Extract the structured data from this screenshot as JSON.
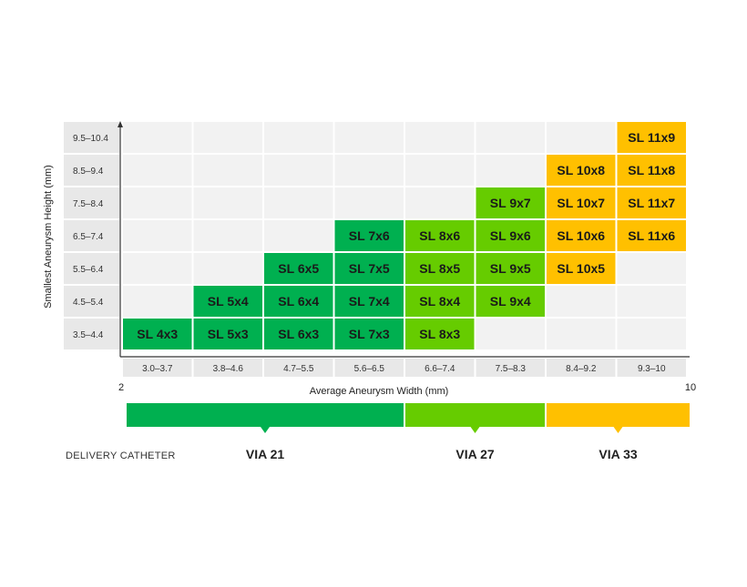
{
  "chart_data": {
    "type": "table",
    "ylabel": "Smallest Aneurysm Height (mm)",
    "xlabel": "Average Aneurysm Width (mm)",
    "x_min_label": "2",
    "x_max_label": "10",
    "x_categories": [
      "3.0–3.7",
      "3.8–4.6",
      "4.7–5.5",
      "5.6–6.5",
      "6.6–7.4",
      "7.5–8.3",
      "8.4–9.2",
      "9.3–10"
    ],
    "y_categories": [
      "9.5–10.4",
      "8.5–9.4",
      "7.5–8.4",
      "6.5–7.4",
      "5.5–6.4",
      "4.5–5.4",
      "3.5–4.4"
    ],
    "colors": {
      "via21": "#00b050",
      "via27": "#66cc00",
      "via33": "#ffc000",
      "empty": "#f2f2f2",
      "label_bg": "#e8e8e8"
    },
    "cells": [
      {
        "label": "SL 4x3",
        "col": 0,
        "row": 6,
        "catheter": "via21"
      },
      {
        "label": "SL 5x4",
        "col": 1,
        "row": 5,
        "catheter": "via21"
      },
      {
        "label": "SL 5x3",
        "col": 1,
        "row": 6,
        "catheter": "via21"
      },
      {
        "label": "SL 6x5",
        "col": 2,
        "row": 4,
        "catheter": "via21"
      },
      {
        "label": "SL 6x4",
        "col": 2,
        "row": 5,
        "catheter": "via21"
      },
      {
        "label": "SL 6x3",
        "col": 2,
        "row": 6,
        "catheter": "via21"
      },
      {
        "label": "SL 7x6",
        "col": 3,
        "row": 3,
        "catheter": "via21"
      },
      {
        "label": "SL 7x5",
        "col": 3,
        "row": 4,
        "catheter": "via21"
      },
      {
        "label": "SL 7x4",
        "col": 3,
        "row": 5,
        "catheter": "via21"
      },
      {
        "label": "SL 7x3",
        "col": 3,
        "row": 6,
        "catheter": "via21"
      },
      {
        "label": "SL 8x6",
        "col": 4,
        "row": 3,
        "catheter": "via27"
      },
      {
        "label": "SL 8x5",
        "col": 4,
        "row": 4,
        "catheter": "via27"
      },
      {
        "label": "SL 8x4",
        "col": 4,
        "row": 5,
        "catheter": "via27"
      },
      {
        "label": "SL 8x3",
        "col": 4,
        "row": 6,
        "catheter": "via27"
      },
      {
        "label": "SL 9x7",
        "col": 5,
        "row": 2,
        "catheter": "via27"
      },
      {
        "label": "SL 9x6",
        "col": 5,
        "row": 3,
        "catheter": "via27"
      },
      {
        "label": "SL 9x5",
        "col": 5,
        "row": 4,
        "catheter": "via27"
      },
      {
        "label": "SL 9x4",
        "col": 5,
        "row": 5,
        "catheter": "via27"
      },
      {
        "label": "SL 10x8",
        "col": 6,
        "row": 1,
        "catheter": "via33"
      },
      {
        "label": "SL 10x7",
        "col": 6,
        "row": 2,
        "catheter": "via33"
      },
      {
        "label": "SL 10x6",
        "col": 6,
        "row": 3,
        "catheter": "via33"
      },
      {
        "label": "SL 10x5",
        "col": 6,
        "row": 4,
        "catheter": "via33"
      },
      {
        "label": "SL 11x9",
        "col": 7,
        "row": 0,
        "catheter": "via33"
      },
      {
        "label": "SL 11x8",
        "col": 7,
        "row": 1,
        "catheter": "via33"
      },
      {
        "label": "SL 11x7",
        "col": 7,
        "row": 2,
        "catheter": "via33"
      },
      {
        "label": "SL 11x6",
        "col": 7,
        "row": 3,
        "catheter": "via33"
      }
    ],
    "catheters": [
      {
        "key": "via21",
        "name": "VIA 21",
        "from_col": 0,
        "to_col": 3
      },
      {
        "key": "via27",
        "name": "VIA 27",
        "from_col": 4,
        "to_col": 5
      },
      {
        "key": "via33",
        "name": "VIA 33",
        "from_col": 6,
        "to_col": 7
      }
    ],
    "catheter_row_label": "DELIVERY CATHETER"
  }
}
